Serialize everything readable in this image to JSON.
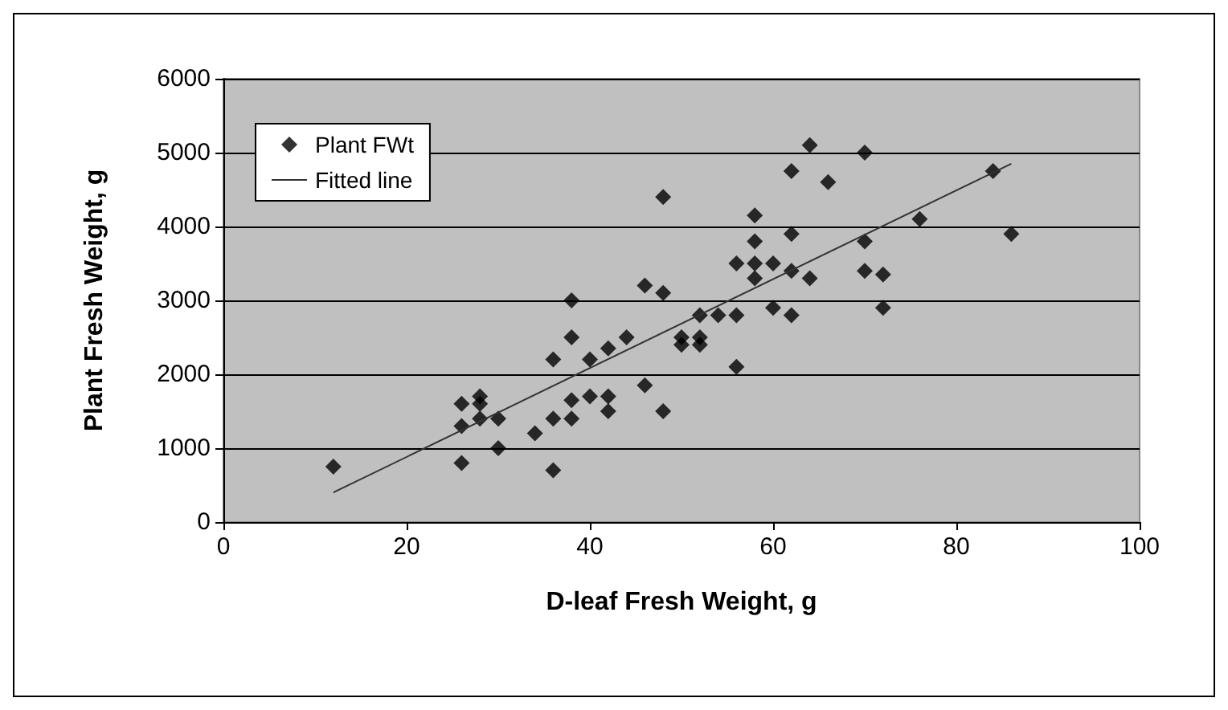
{
  "chart_data": {
    "type": "scatter",
    "xlabel": "D-leaf Fresh Weight, g",
    "ylabel": "Plant Fresh Weight, g",
    "xlim": [
      0,
      100
    ],
    "xticks": [
      0,
      20,
      40,
      60,
      80,
      100
    ],
    "ylim": [
      0,
      6000
    ],
    "yticks": [
      0,
      1000,
      2000,
      3000,
      4000,
      5000,
      6000
    ],
    "grid": "y",
    "legend": "top left",
    "series": [
      {
        "name": "Plant FWt",
        "marker": "diamond",
        "color": "#000000",
        "x": [
          12,
          26,
          26,
          26,
          28,
          28,
          28,
          30,
          30,
          34,
          36,
          36,
          36,
          38,
          38,
          38,
          38,
          40,
          40,
          42,
          42,
          42,
          44,
          46,
          46,
          48,
          48,
          48,
          50,
          50,
          52,
          52,
          52,
          54,
          56,
          56,
          56,
          58,
          58,
          58,
          58,
          60,
          60,
          62,
          62,
          62,
          62,
          64,
          64,
          66,
          70,
          70,
          70,
          72,
          72,
          76,
          84,
          86
        ],
        "values": [
          750,
          1600,
          1300,
          800,
          1700,
          1600,
          1400,
          1400,
          1000,
          1200,
          2200,
          1400,
          700,
          3000,
          2500,
          1650,
          1400,
          2200,
          1700,
          2350,
          1700,
          1500,
          2500,
          3200,
          1850,
          4400,
          3100,
          1500,
          2500,
          2400,
          2500,
          2400,
          2800,
          2800,
          2800,
          3500,
          2100,
          4150,
          3800,
          3500,
          3300,
          3500,
          2900,
          4750,
          3900,
          3400,
          2800,
          5100,
          3300,
          4600,
          5000,
          3800,
          3400,
          3350,
          2900,
          4100,
          4750,
          3900
        ]
      },
      {
        "name": "Fitted line",
        "type": "line",
        "marker": "none",
        "color": "#333333",
        "x": [
          12,
          86
        ],
        "values": [
          400,
          4850
        ]
      }
    ]
  }
}
